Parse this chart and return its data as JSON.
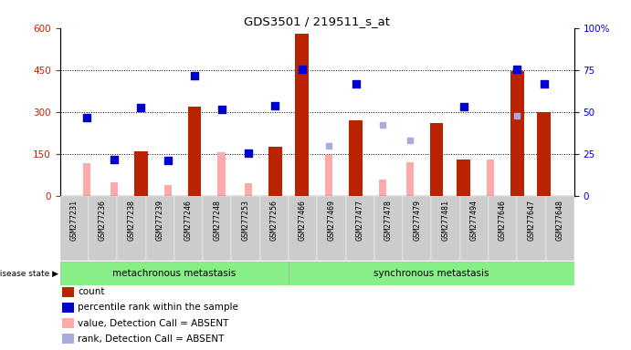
{
  "title": "GDS3501 / 219511_s_at",
  "samples": [
    "GSM277231",
    "GSM277236",
    "GSM277238",
    "GSM277239",
    "GSM277246",
    "GSM277248",
    "GSM277253",
    "GSM277256",
    "GSM277466",
    "GSM277469",
    "GSM277477",
    "GSM277478",
    "GSM277479",
    "GSM277481",
    "GSM277494",
    "GSM277646",
    "GSM277647",
    "GSM277648"
  ],
  "count_values": [
    null,
    null,
    160,
    null,
    320,
    null,
    null,
    175,
    580,
    null,
    270,
    null,
    null,
    260,
    130,
    null,
    445,
    300
  ],
  "rank_values": [
    280,
    130,
    315,
    128,
    430,
    310,
    152,
    322,
    453,
    null,
    400,
    null,
    null,
    null,
    320,
    null,
    453,
    400
  ],
  "value_absent": [
    118,
    48,
    null,
    40,
    null,
    158,
    45,
    null,
    null,
    148,
    null,
    60,
    120,
    null,
    null,
    130,
    null,
    null
  ],
  "rank_absent": [
    null,
    null,
    null,
    null,
    null,
    null,
    null,
    null,
    null,
    178,
    null,
    255,
    200,
    null,
    null,
    null,
    285,
    null
  ],
  "group1_count": 8,
  "group2_count": 10,
  "group1_label": "metachronous metastasis",
  "group2_label": "synchronous metastasis",
  "ylim_left": [
    0,
    600
  ],
  "ylim_right": [
    0,
    100
  ],
  "yticks_left": [
    0,
    150,
    300,
    450,
    600
  ],
  "yticks_right": [
    0,
    25,
    50,
    75,
    100
  ],
  "bar_color": "#bb2200",
  "rank_color": "#0000cc",
  "absent_value_color": "#ffaaaa",
  "absent_rank_color": "#aaaadd",
  "group_bg_color": "#88ee88",
  "title_color": "black",
  "disease_state_label": "disease state"
}
